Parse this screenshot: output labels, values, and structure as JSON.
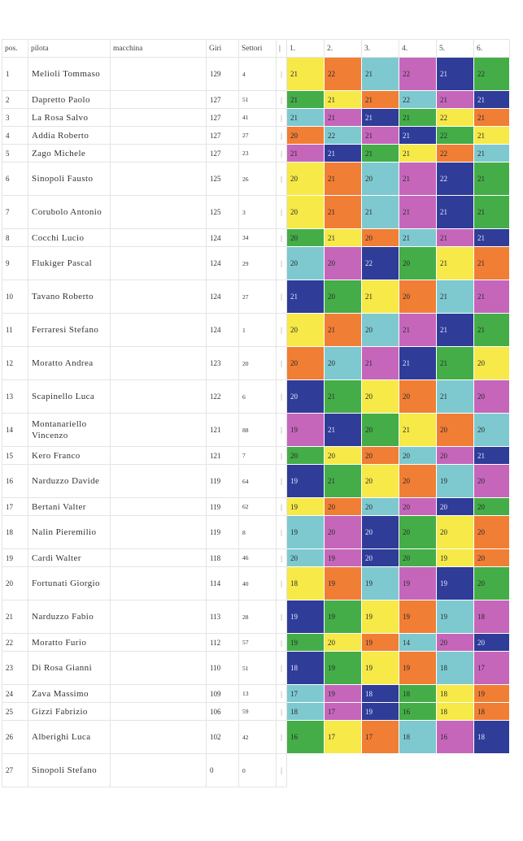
{
  "headers": {
    "pos": "pos.",
    "pilota": "pilota",
    "macchina": "macchina",
    "giri": "Giri",
    "settori": "Settori",
    "pipe": "|",
    "laps": [
      "1.",
      "2.",
      "3.",
      "4.",
      "5.",
      "6."
    ]
  },
  "colors": {
    "Y": "#f6e948",
    "O": "#f07e35",
    "T": "#7ec9d0",
    "P": "#c566bb",
    "B": "#2f3c98",
    "G": "#44ad48"
  },
  "rows": [
    {
      "pos": "1",
      "name": "Melioli Tommaso",
      "giri": "129",
      "settori": "4",
      "laps": [
        [
          "21",
          "Y"
        ],
        [
          "22",
          "O"
        ],
        [
          "21",
          "T"
        ],
        [
          "22",
          "P"
        ],
        [
          "21",
          "B"
        ],
        [
          "22",
          "G"
        ]
      ]
    },
    {
      "pos": "2",
      "name": "Dapretto Paolo",
      "giri": "127",
      "settori": "51",
      "laps": [
        [
          "21",
          "G"
        ],
        [
          "21",
          "Y"
        ],
        [
          "21",
          "O"
        ],
        [
          "22",
          "T"
        ],
        [
          "21",
          "P"
        ],
        [
          "21",
          "B"
        ]
      ]
    },
    {
      "pos": "3",
      "name": "La Rosa Salvo",
      "giri": "127",
      "settori": "41",
      "laps": [
        [
          "21",
          "T"
        ],
        [
          "21",
          "P"
        ],
        [
          "21",
          "B"
        ],
        [
          "21",
          "G"
        ],
        [
          "22",
          "Y"
        ],
        [
          "21",
          "O"
        ]
      ]
    },
    {
      "pos": "4",
      "name": "Addia Roberto",
      "giri": "127",
      "settori": "27",
      "laps": [
        [
          "20",
          "O"
        ],
        [
          "22",
          "T"
        ],
        [
          "21",
          "P"
        ],
        [
          "21",
          "B"
        ],
        [
          "22",
          "G"
        ],
        [
          "21",
          "Y"
        ]
      ]
    },
    {
      "pos": "5",
      "name": "Zago Michele",
      "giri": "127",
      "settori": "23",
      "laps": [
        [
          "21",
          "P"
        ],
        [
          "21",
          "B"
        ],
        [
          "21",
          "G"
        ],
        [
          "21",
          "Y"
        ],
        [
          "22",
          "O"
        ],
        [
          "21",
          "T"
        ]
      ]
    },
    {
      "pos": "6",
      "name": "Sinopoli Fausto",
      "giri": "125",
      "settori": "26",
      "laps": [
        [
          "20",
          "Y"
        ],
        [
          "21",
          "O"
        ],
        [
          "20",
          "T"
        ],
        [
          "21",
          "P"
        ],
        [
          "22",
          "B"
        ],
        [
          "21",
          "G"
        ]
      ]
    },
    {
      "pos": "7",
      "name": "Corubolo Antonio",
      "giri": "125",
      "settori": "3",
      "laps": [
        [
          "20",
          "Y"
        ],
        [
          "21",
          "O"
        ],
        [
          "21",
          "T"
        ],
        [
          "21",
          "P"
        ],
        [
          "21",
          "B"
        ],
        [
          "21",
          "G"
        ]
      ]
    },
    {
      "pos": "8",
      "name": "Cocchi Lucio",
      "giri": "124",
      "settori": "34",
      "laps": [
        [
          "20",
          "G"
        ],
        [
          "21",
          "Y"
        ],
        [
          "20",
          "O"
        ],
        [
          "21",
          "T"
        ],
        [
          "21",
          "P"
        ],
        [
          "21",
          "B"
        ]
      ]
    },
    {
      "pos": "9",
      "name": "Flukiger Pascal",
      "giri": "124",
      "settori": "29",
      "laps": [
        [
          "20",
          "T"
        ],
        [
          "20",
          "P"
        ],
        [
          "22",
          "B"
        ],
        [
          "20",
          "G"
        ],
        [
          "21",
          "Y"
        ],
        [
          "21",
          "O"
        ]
      ]
    },
    {
      "pos": "10",
      "name": "Tavano Roberto",
      "giri": "124",
      "settori": "27",
      "laps": [
        [
          "21",
          "B"
        ],
        [
          "20",
          "G"
        ],
        [
          "21",
          "Y"
        ],
        [
          "20",
          "O"
        ],
        [
          "21",
          "T"
        ],
        [
          "21",
          "P"
        ]
      ]
    },
    {
      "pos": "11",
      "name": "Ferraresi Stefano",
      "giri": "124",
      "settori": "1",
      "laps": [
        [
          "20",
          "Y"
        ],
        [
          "21",
          "O"
        ],
        [
          "20",
          "T"
        ],
        [
          "21",
          "P"
        ],
        [
          "21",
          "B"
        ],
        [
          "21",
          "G"
        ]
      ]
    },
    {
      "pos": "12",
      "name": "Moratto Andrea",
      "giri": "123",
      "settori": "20",
      "laps": [
        [
          "20",
          "O"
        ],
        [
          "20",
          "T"
        ],
        [
          "21",
          "P"
        ],
        [
          "21",
          "B"
        ],
        [
          "21",
          "G"
        ],
        [
          "20",
          "Y"
        ]
      ]
    },
    {
      "pos": "13",
      "name": "Scapinello Luca",
      "giri": "122",
      "settori": "6",
      "laps": [
        [
          "20",
          "B"
        ],
        [
          "21",
          "G"
        ],
        [
          "20",
          "Y"
        ],
        [
          "20",
          "O"
        ],
        [
          "21",
          "T"
        ],
        [
          "20",
          "P"
        ]
      ]
    },
    {
      "pos": "14",
      "name": "Montanariello Vincenzo",
      "giri": "121",
      "settori": "88",
      "laps": [
        [
          "19",
          "P"
        ],
        [
          "21",
          "B"
        ],
        [
          "20",
          "G"
        ],
        [
          "21",
          "Y"
        ],
        [
          "20",
          "O"
        ],
        [
          "20",
          "T"
        ]
      ]
    },
    {
      "pos": "15",
      "name": "Kero Franco",
      "giri": "121",
      "settori": "7",
      "laps": [
        [
          "20",
          "G"
        ],
        [
          "20",
          "Y"
        ],
        [
          "20",
          "O"
        ],
        [
          "20",
          "T"
        ],
        [
          "20",
          "P"
        ],
        [
          "21",
          "B"
        ]
      ]
    },
    {
      "pos": "16",
      "name": "Narduzzo Davide",
      "giri": "119",
      "settori": "64",
      "laps": [
        [
          "19",
          "B"
        ],
        [
          "21",
          "G"
        ],
        [
          "20",
          "Y"
        ],
        [
          "20",
          "O"
        ],
        [
          "19",
          "T"
        ],
        [
          "20",
          "P"
        ]
      ]
    },
    {
      "pos": "17",
      "name": "Bertani Valter",
      "giri": "119",
      "settori": "62",
      "laps": [
        [
          "19",
          "Y"
        ],
        [
          "20",
          "O"
        ],
        [
          "20",
          "T"
        ],
        [
          "20",
          "P"
        ],
        [
          "20",
          "B"
        ],
        [
          "20",
          "G"
        ]
      ]
    },
    {
      "pos": "18",
      "name": "Nalin Pieremilio",
      "giri": "119",
      "settori": "8",
      "laps": [
        [
          "19",
          "T"
        ],
        [
          "20",
          "P"
        ],
        [
          "20",
          "B"
        ],
        [
          "20",
          "G"
        ],
        [
          "20",
          "Y"
        ],
        [
          "20",
          "O"
        ]
      ]
    },
    {
      "pos": "19",
      "name": "Cardi Walter",
      "giri": "118",
      "settori": "46",
      "laps": [
        [
          "20",
          "T"
        ],
        [
          "19",
          "P"
        ],
        [
          "20",
          "B"
        ],
        [
          "20",
          "G"
        ],
        [
          "19",
          "Y"
        ],
        [
          "20",
          "O"
        ]
      ]
    },
    {
      "pos": "20",
      "name": "Fortunati Giorgio",
      "giri": "114",
      "settori": "40",
      "laps": [
        [
          "18",
          "Y"
        ],
        [
          "19",
          "O"
        ],
        [
          "19",
          "T"
        ],
        [
          "19",
          "P"
        ],
        [
          "19",
          "B"
        ],
        [
          "20",
          "G"
        ]
      ]
    },
    {
      "pos": "21",
      "name": "Narduzzo Fabio",
      "giri": "113",
      "settori": "28",
      "laps": [
        [
          "19",
          "B"
        ],
        [
          "19",
          "G"
        ],
        [
          "19",
          "Y"
        ],
        [
          "19",
          "O"
        ],
        [
          "19",
          "T"
        ],
        [
          "18",
          "P"
        ]
      ]
    },
    {
      "pos": "22",
      "name": "Moratto Furio",
      "giri": "112",
      "settori": "57",
      "laps": [
        [
          "19",
          "G"
        ],
        [
          "20",
          "Y"
        ],
        [
          "19",
          "O"
        ],
        [
          "14",
          "T"
        ],
        [
          "20",
          "P"
        ],
        [
          "20",
          "B"
        ]
      ]
    },
    {
      "pos": "23",
      "name": "Di Rosa Gianni",
      "giri": "110",
      "settori": "51",
      "laps": [
        [
          "18",
          "B"
        ],
        [
          "19",
          "G"
        ],
        [
          "19",
          "Y"
        ],
        [
          "19",
          "O"
        ],
        [
          "18",
          "T"
        ],
        [
          "17",
          "P"
        ]
      ]
    },
    {
      "pos": "24",
      "name": "Zava Massimo",
      "giri": "109",
      "settori": "13",
      "laps": [
        [
          "17",
          "T"
        ],
        [
          "19",
          "P"
        ],
        [
          "18",
          "B"
        ],
        [
          "18",
          "G"
        ],
        [
          "18",
          "Y"
        ],
        [
          "19",
          "O"
        ]
      ]
    },
    {
      "pos": "25",
      "name": "Gizzi Fabrizio",
      "giri": "106",
      "settori": "59",
      "laps": [
        [
          "18",
          "T"
        ],
        [
          "17",
          "P"
        ],
        [
          "19",
          "B"
        ],
        [
          "16",
          "G"
        ],
        [
          "18",
          "Y"
        ],
        [
          "18",
          "O"
        ]
      ]
    },
    {
      "pos": "26",
      "name": "Alberighi Luca",
      "giri": "102",
      "settori": "42",
      "laps": [
        [
          "16",
          "G"
        ],
        [
          "17",
          "Y"
        ],
        [
          "17",
          "O"
        ],
        [
          "18",
          "T"
        ],
        [
          "16",
          "P"
        ],
        [
          "18",
          "B"
        ]
      ]
    },
    {
      "pos": "27",
      "name": "Sinopoli Stefano",
      "giri": "0",
      "settori": "0",
      "laps": []
    }
  ]
}
